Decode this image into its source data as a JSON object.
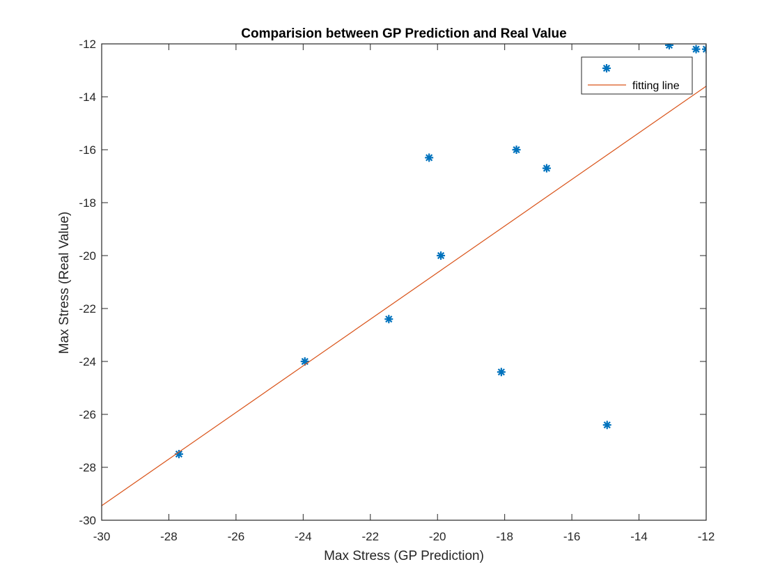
{
  "chart_data": {
    "type": "scatter",
    "title": "Comparision between GP Prediction and Real Value",
    "xlabel": "Max Stress (GP Prediction)",
    "ylabel": "Max Stress (Real Value)",
    "xlim": [
      -30,
      -12
    ],
    "ylim": [
      -30,
      -12
    ],
    "xticks": [
      -30,
      -28,
      -26,
      -24,
      -22,
      -20,
      -18,
      -16,
      -14,
      -12
    ],
    "yticks": [
      -30,
      -28,
      -26,
      -24,
      -22,
      -20,
      -18,
      -16,
      -14,
      -12
    ],
    "xtick_labels": [
      "-30",
      "-28",
      "-26",
      "-24",
      "-22",
      "-20",
      "-18",
      "-16",
      "-14",
      "-12"
    ],
    "ytick_labels": [
      "-30",
      "-28",
      "-26",
      "-24",
      "-22",
      "-20",
      "-18",
      "-16",
      "-14",
      "-12"
    ],
    "grid": false,
    "legend_position": "top-right",
    "series": [
      {
        "name": "",
        "type": "scatter",
        "marker": "asterisk",
        "color": "#0072BD",
        "points": [
          {
            "x": -27.7,
            "y": -27.5
          },
          {
            "x": -23.95,
            "y": -24.0
          },
          {
            "x": -21.45,
            "y": -22.4
          },
          {
            "x": -20.25,
            "y": -16.3
          },
          {
            "x": -19.9,
            "y": -20.0
          },
          {
            "x": -18.1,
            "y": -24.4
          },
          {
            "x": -17.65,
            "y": -16.0
          },
          {
            "x": -16.75,
            "y": -16.7
          },
          {
            "x": -14.95,
            "y": -26.4
          },
          {
            "x": -13.1,
            "y": -12.05
          },
          {
            "x": -12.3,
            "y": -12.2
          },
          {
            "x": -12.0,
            "y": -12.2
          }
        ]
      },
      {
        "name": "fitting line",
        "type": "line",
        "color": "#D95319",
        "points": [
          {
            "x": -30,
            "y": -29.45
          },
          {
            "x": -12,
            "y": -13.6
          }
        ]
      }
    ]
  }
}
